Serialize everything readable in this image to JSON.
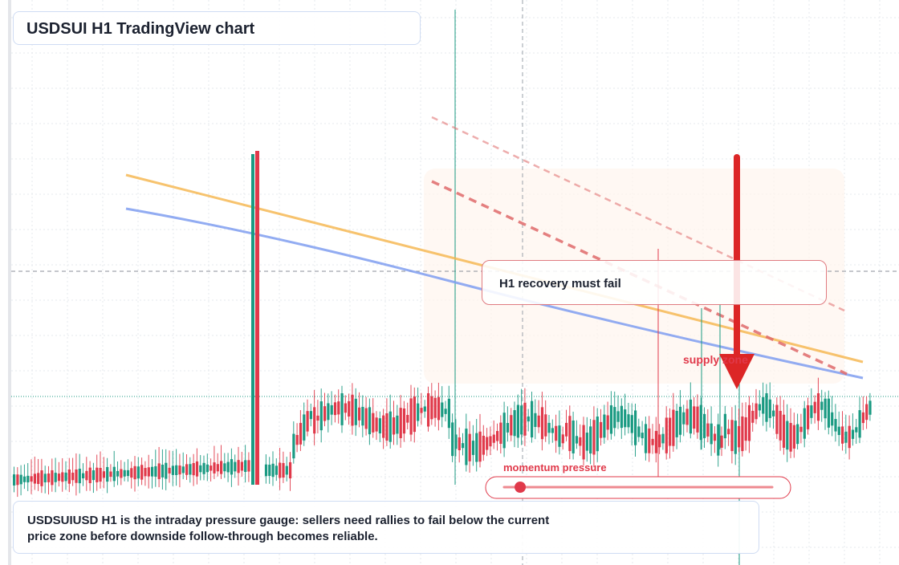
{
  "title": "USDSUI H1 TradingView chart",
  "callout": {
    "label": "H1 recovery must fail"
  },
  "supply_zone_label": "supply zone",
  "gauge": {
    "label": "momentum pressure",
    "level_fraction": 0.06
  },
  "note": {
    "text": "USDSUIUSD H1 is the intraday pressure gauge: sellers need rallies to fail below the current price zone before downside follow-through becomes reliable."
  },
  "colors": {
    "bull": "#1a9a82",
    "bear": "#e0394a",
    "moving_average_fast": "#f5b44a",
    "moving_average_slow": "#7f9ef0",
    "trendline": "#e06b6b",
    "arrow": "#dc2626",
    "vertical_marker": "#1a9a82"
  },
  "chart_data": {
    "type": "candlestick",
    "timeframe": "H1",
    "symbol": "USDSUI",
    "grid": true,
    "horizontal_levels": [
      "dashed crosshair level",
      "dotted current price level"
    ],
    "overlays": [
      "fast moving average (orange)",
      "slow moving average (blue)",
      "two descending dashed trendlines (red)",
      "large downward arrow (red)"
    ]
  }
}
